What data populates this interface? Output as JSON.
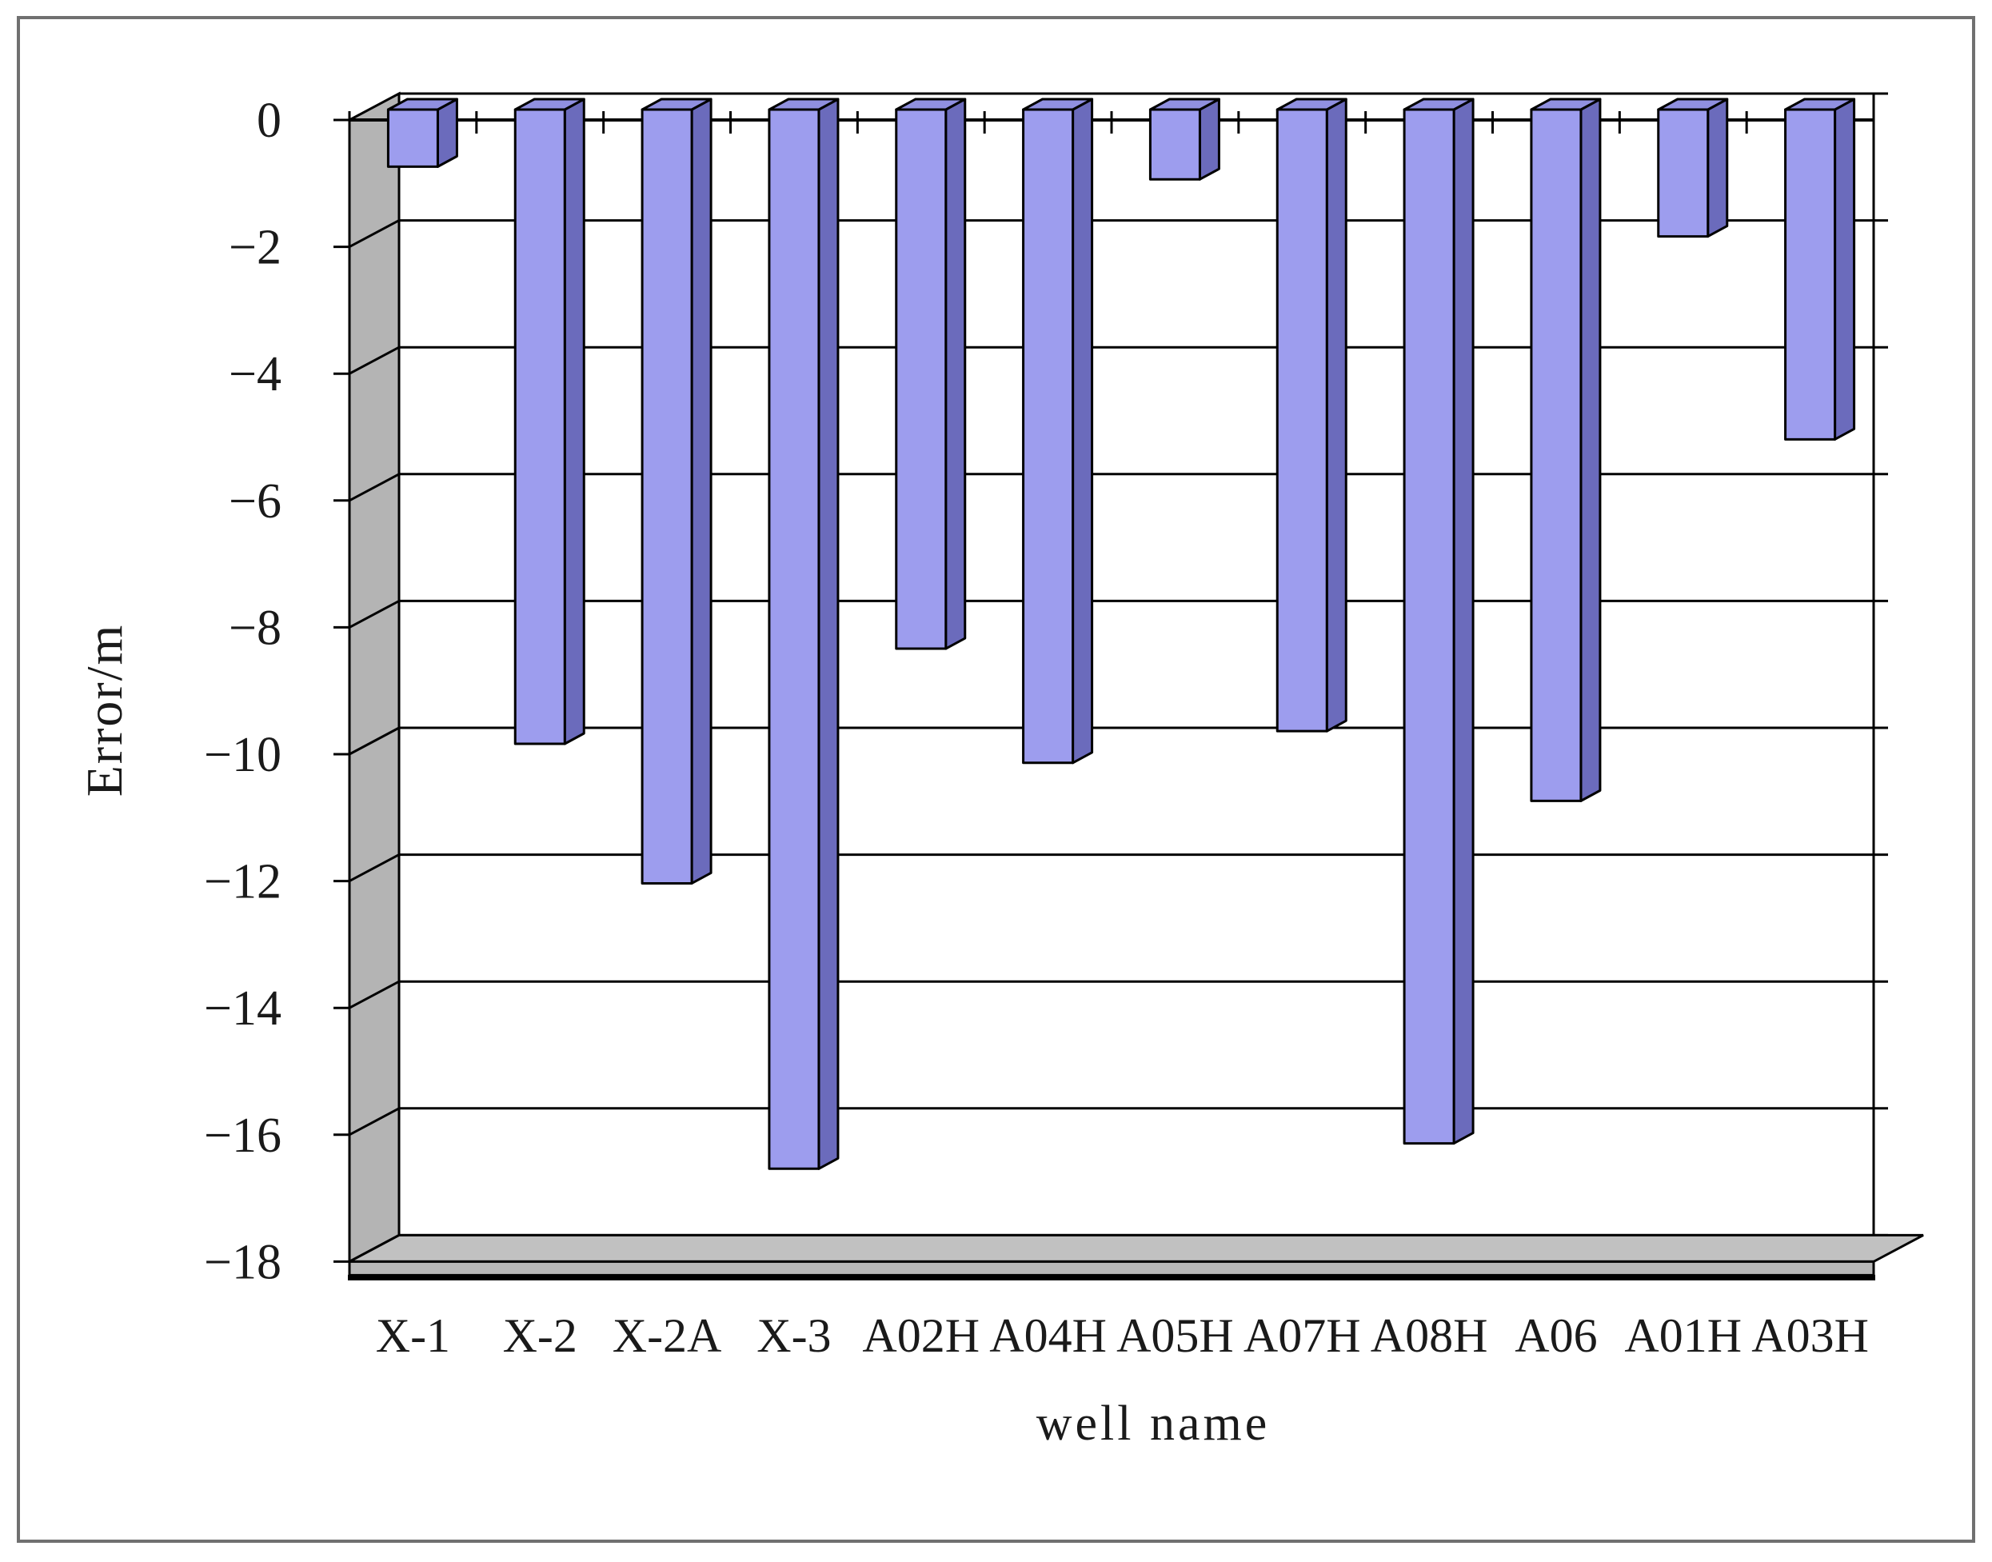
{
  "chart_data": {
    "type": "bar",
    "style": "excel-3d-column",
    "title": "",
    "xlabel": "well name",
    "ylabel": "Error/m",
    "categories": [
      "X-1",
      "X-2",
      "X-2A",
      "X-3",
      "A02H",
      "A04H",
      "A05H",
      "A07H",
      "A08H",
      "A06",
      "A01H",
      "A03H"
    ],
    "values": [
      -0.9,
      -10.0,
      -12.2,
      -16.7,
      -8.5,
      -10.3,
      -1.1,
      -9.8,
      -16.3,
      -10.9,
      -2.0,
      -5.2
    ],
    "ylim": [
      -18,
      0
    ],
    "ytick_interval": 2,
    "ytick_labels": [
      "0",
      "−2",
      "−4",
      "−6",
      "−8",
      "−10",
      "−12",
      "−14",
      "−16",
      "−18"
    ],
    "grid": true,
    "legend": "none",
    "colors": {
      "bar_front": "#9d9dee",
      "bar_top": "#9090e0",
      "bar_side": "#6b6bbc",
      "outline": "#000000",
      "wall_left": "#b4b4b4",
      "floor": "#c1c1c1",
      "floor_front": "#b8b8b8",
      "frame": "#707070",
      "text": "#1a1a1a",
      "background": "#ffffff"
    }
  }
}
